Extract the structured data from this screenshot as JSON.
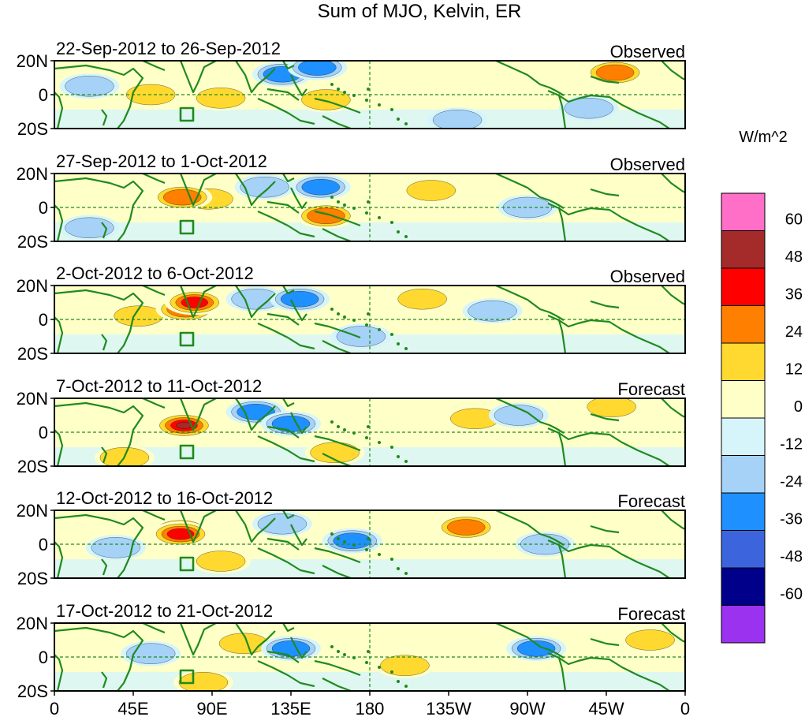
{
  "chart_data": {
    "type": "heatmap",
    "title": "Sum of MJO, Kelvin, ER",
    "colorbar": {
      "unit_label": "W/m^2",
      "levels": [
        60,
        48,
        36,
        24,
        12,
        0,
        -12,
        -24,
        -36,
        -48,
        -60
      ],
      "bins": [
        {
          "range": "> 60",
          "color": "#ff6ec7"
        },
        {
          "range": "48 to 60",
          "color": "#a52a2a"
        },
        {
          "range": "36 to 48",
          "color": "#ff0000"
        },
        {
          "range": "24 to 36",
          "color": "#ff7f00"
        },
        {
          "range": "12 to 24",
          "color": "#ffd92f"
        },
        {
          "range": "0 to 12",
          "color": "#ffffc8"
        },
        {
          "range": "-12 to 0",
          "color": "#d6f5fa"
        },
        {
          "range": "-24 to -12",
          "color": "#a6d2f7"
        },
        {
          "range": "-36 to -24",
          "color": "#1e90ff"
        },
        {
          "range": "-48 to -36",
          "color": "#3c64dc"
        },
        {
          "range": "-60 to -48",
          "color": "#00008b"
        },
        {
          "range": "< -60",
          "color": "#9a32f0"
        }
      ]
    },
    "x_axis": {
      "tick_labels": [
        "0",
        "45E",
        "90E",
        "135E",
        "180",
        "135W",
        "90W",
        "45W",
        "0"
      ],
      "tick_values_deg_east": [
        0,
        45,
        90,
        135,
        180,
        225,
        270,
        315,
        360
      ],
      "xlim": [
        0,
        360
      ]
    },
    "y_axis": {
      "tick_labels": [
        "20N",
        "0",
        "20S"
      ],
      "tick_values": [
        20,
        0,
        -20
      ],
      "ylim": [
        -20,
        20
      ]
    },
    "panels": [
      {
        "date_range": "22-Sep-2012 to 26-Sep-2012",
        "status": "Observed",
        "anomalies": [
          {
            "lon": 130,
            "lat": 12,
            "value": -30
          },
          {
            "lon": 150,
            "lat": 16,
            "value": -36
          },
          {
            "lon": 55,
            "lat": 0,
            "value": 14
          },
          {
            "lon": 95,
            "lat": -2,
            "value": 14
          },
          {
            "lon": 155,
            "lat": -3,
            "value": 14
          },
          {
            "lon": 320,
            "lat": 13,
            "value": 30
          },
          {
            "lon": 305,
            "lat": -8,
            "value": -18
          },
          {
            "lon": 230,
            "lat": -15,
            "value": -18
          },
          {
            "lon": 20,
            "lat": 5,
            "value": -18
          }
        ]
      },
      {
        "date_range": "27-Sep-2012 to 1-Oct-2012",
        "status": "Observed",
        "anomalies": [
          {
            "lon": 73,
            "lat": 6,
            "value": 30
          },
          {
            "lon": 88,
            "lat": 5,
            "value": 14
          },
          {
            "lon": 155,
            "lat": -5,
            "value": 28
          },
          {
            "lon": 152,
            "lat": 12,
            "value": -30
          },
          {
            "lon": 120,
            "lat": 12,
            "value": -18
          },
          {
            "lon": 215,
            "lat": 10,
            "value": 14
          },
          {
            "lon": 20,
            "lat": -12,
            "value": -18
          },
          {
            "lon": 270,
            "lat": 0,
            "value": -16
          }
        ]
      },
      {
        "date_range": "2-Oct-2012 to 6-Oct-2012",
        "status": "Observed",
        "anomalies": [
          {
            "lon": 75,
            "lat": 6,
            "value": 26
          },
          {
            "lon": 80,
            "lat": 10,
            "value": 38
          },
          {
            "lon": 140,
            "lat": 12,
            "value": -30
          },
          {
            "lon": 115,
            "lat": 12,
            "value": -18
          },
          {
            "lon": 210,
            "lat": 12,
            "value": 24
          },
          {
            "lon": 48,
            "lat": 2,
            "value": 14
          },
          {
            "lon": 250,
            "lat": 5,
            "value": -16
          },
          {
            "lon": 175,
            "lat": -10,
            "value": -14
          }
        ]
      },
      {
        "date_range": "7-Oct-2012 to 11-Oct-2012",
        "status": "Forecast",
        "anomalies": [
          {
            "lon": 72,
            "lat": 5,
            "value": 40
          },
          {
            "lon": 73,
            "lat": 5,
            "value": 56
          },
          {
            "lon": 74,
            "lat": 4,
            "value": 64
          },
          {
            "lon": 115,
            "lat": 12,
            "value": -28
          },
          {
            "lon": 135,
            "lat": 5,
            "value": -32
          },
          {
            "lon": 160,
            "lat": -12,
            "value": 18
          },
          {
            "lon": 240,
            "lat": 8,
            "value": 18
          },
          {
            "lon": 265,
            "lat": 10,
            "value": -20
          },
          {
            "lon": 318,
            "lat": 15,
            "value": 14
          },
          {
            "lon": 40,
            "lat": -15,
            "value": 14
          }
        ]
      },
      {
        "date_range": "12-Oct-2012 to 16-Oct-2012",
        "status": "Forecast",
        "anomalies": [
          {
            "lon": 72,
            "lat": 8,
            "value": 30
          },
          {
            "lon": 72,
            "lat": 6,
            "value": 40
          },
          {
            "lon": 170,
            "lat": 2,
            "value": -32
          },
          {
            "lon": 235,
            "lat": 10,
            "value": 30
          },
          {
            "lon": 35,
            "lat": -2,
            "value": -16
          },
          {
            "lon": 130,
            "lat": 12,
            "value": -18
          },
          {
            "lon": 95,
            "lat": -10,
            "value": 14
          },
          {
            "lon": 280,
            "lat": 0,
            "value": -16
          }
        ]
      },
      {
        "date_range": "17-Oct-2012 to 21-Oct-2012",
        "status": "Forecast",
        "anomalies": [
          {
            "lon": 135,
            "lat": 5,
            "value": -30
          },
          {
            "lon": 108,
            "lat": 8,
            "value": 14
          },
          {
            "lon": 55,
            "lat": 2,
            "value": -16
          },
          {
            "lon": 275,
            "lat": 5,
            "value": -26
          },
          {
            "lon": 200,
            "lat": -5,
            "value": 14
          },
          {
            "lon": 85,
            "lat": -15,
            "value": 14
          },
          {
            "lon": 340,
            "lat": 10,
            "value": 16
          }
        ]
      }
    ]
  }
}
